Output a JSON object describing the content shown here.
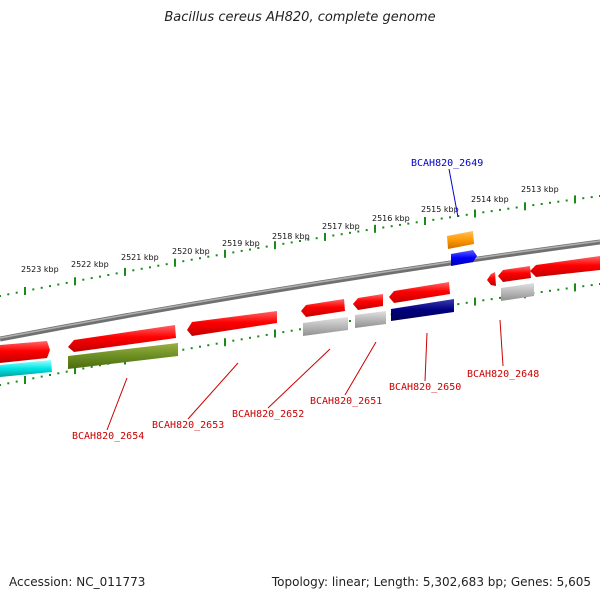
{
  "title": "Bacillus cereus AH820, complete genome",
  "footer": {
    "accession": "Accession: NC_011773",
    "topology": "Topology: linear; Length: 5,302,683 bp; Genes: 5,605"
  },
  "colors": {
    "backbone": "#808080",
    "ticks": "#1a8a1a",
    "red_label": "#cc0000",
    "blue_label": "#0000cc"
  },
  "ruler_labels": [
    "2513 kbp",
    "2514 kbp",
    "2515 kbp",
    "2516 kbp",
    "2517 kbp",
    "2518 kbp",
    "2519 kbp",
    "2520 kbp",
    "2521 kbp",
    "2522 kbp",
    "2523 kbp"
  ],
  "genes": [
    {
      "name": "BCAH820_2649",
      "color": "#0000cc"
    },
    {
      "name": "BCAH820_2648",
      "color": "#cc0000"
    },
    {
      "name": "BCAH820_2650",
      "color": "#cc0000"
    },
    {
      "name": "BCAH820_2651",
      "color": "#cc0000"
    },
    {
      "name": "BCAH820_2652",
      "color": "#cc0000"
    },
    {
      "name": "BCAH820_2653",
      "color": "#cc0000"
    },
    {
      "name": "BCAH820_2654",
      "color": "#cc0000"
    }
  ]
}
